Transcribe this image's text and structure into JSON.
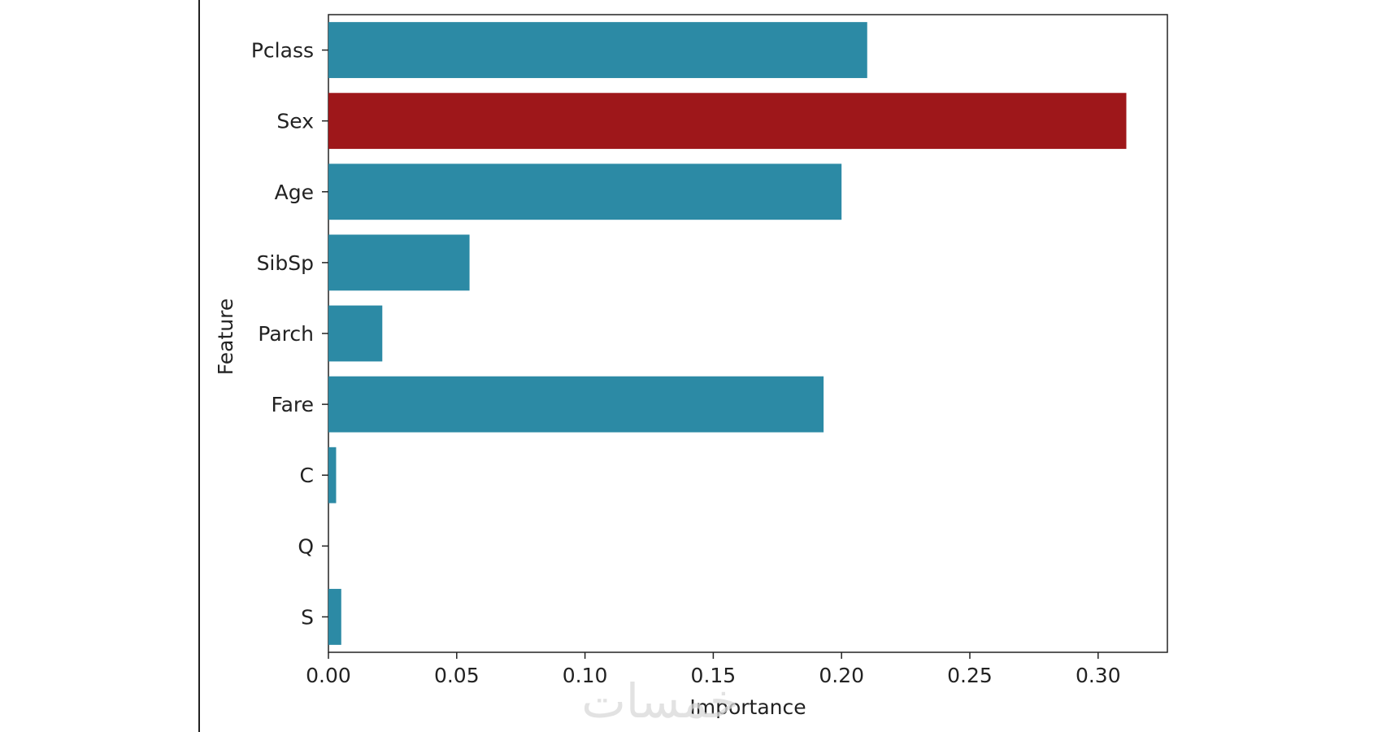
{
  "chart_data": {
    "type": "bar",
    "orientation": "horizontal",
    "categories": [
      "Pclass",
      "Sex",
      "Age",
      "SibSp",
      "Parch",
      "Fare",
      "C",
      "Q",
      "S"
    ],
    "values": [
      0.21,
      0.311,
      0.2,
      0.055,
      0.021,
      0.193,
      0.003,
      0.0,
      0.005
    ],
    "xlabel": "Importance",
    "ylabel": "Feature",
    "xlim": [
      0,
      0.327
    ],
    "xticks": [
      "0.00",
      "0.05",
      "0.10",
      "0.15",
      "0.20",
      "0.25",
      "0.30"
    ],
    "grid": false,
    "colors": {
      "default": "#2C8AA5",
      "highlight": "#9E171A"
    },
    "highlight_category": "Sex"
  },
  "watermark": {
    "text": "خمسات"
  }
}
